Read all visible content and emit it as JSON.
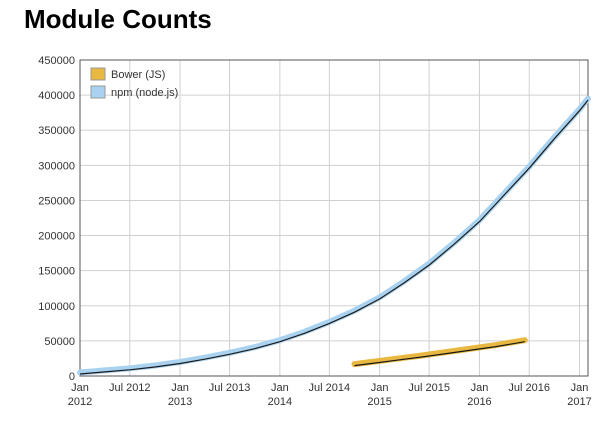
{
  "title": "Module Counts",
  "chart_data": {
    "type": "line",
    "title": "Module Counts",
    "xlabel": "",
    "ylabel": "",
    "ylim": [
      0,
      450000
    ],
    "grid": true,
    "legend_position": "top-left",
    "y_ticks": [
      0,
      50000,
      100000,
      150000,
      200000,
      250000,
      300000,
      350000,
      400000,
      450000
    ],
    "x_ticks": [
      {
        "date": "2012-01-01",
        "line1": "Jan",
        "line2": "2012"
      },
      {
        "date": "2012-07-01",
        "line1": "Jul 2012",
        "line2": ""
      },
      {
        "date": "2013-01-01",
        "line1": "Jan",
        "line2": "2013"
      },
      {
        "date": "2013-07-01",
        "line1": "Jul 2013",
        "line2": ""
      },
      {
        "date": "2014-01-01",
        "line1": "Jan",
        "line2": "2014"
      },
      {
        "date": "2014-07-01",
        "line1": "Jul 2014",
        "line2": ""
      },
      {
        "date": "2015-01-01",
        "line1": "Jan",
        "line2": "2015"
      },
      {
        "date": "2015-07-01",
        "line1": "Jul 2015",
        "line2": ""
      },
      {
        "date": "2016-01-01",
        "line1": "Jan",
        "line2": "2016"
      },
      {
        "date": "2016-07-01",
        "line1": "Jul 2016",
        "line2": ""
      },
      {
        "date": "2017-01-01",
        "line1": "Jan",
        "line2": "2017"
      }
    ],
    "xlim": [
      "2012-01-01",
      "2017-02-01"
    ],
    "series": [
      {
        "name": "Bower (JS)",
        "color": "#e8b840",
        "points": [
          [
            "2014-10-01",
            17000
          ],
          [
            "2014-12-01",
            20000
          ],
          [
            "2015-03-01",
            24500
          ],
          [
            "2015-06-01",
            29000
          ],
          [
            "2015-09-01",
            34000
          ],
          [
            "2015-12-01",
            39000
          ],
          [
            "2016-03-01",
            44000
          ],
          [
            "2016-05-01",
            48000
          ],
          [
            "2016-06-15",
            51000
          ]
        ]
      },
      {
        "name": "npm (node.js)",
        "color": "#a9d2f0",
        "points": [
          [
            "2012-01-01",
            5000
          ],
          [
            "2012-04-01",
            8000
          ],
          [
            "2012-07-01",
            11000
          ],
          [
            "2012-10-01",
            15000
          ],
          [
            "2013-01-01",
            20000
          ],
          [
            "2013-04-01",
            26000
          ],
          [
            "2013-07-01",
            33000
          ],
          [
            "2013-10-01",
            41000
          ],
          [
            "2014-01-01",
            51000
          ],
          [
            "2014-04-01",
            63000
          ],
          [
            "2014-07-01",
            77000
          ],
          [
            "2014-10-01",
            93000
          ],
          [
            "2015-01-01",
            112000
          ],
          [
            "2015-04-01",
            135000
          ],
          [
            "2015-07-01",
            160000
          ],
          [
            "2015-10-01",
            190000
          ],
          [
            "2016-01-01",
            222000
          ],
          [
            "2016-04-01",
            260000
          ],
          [
            "2016-07-01",
            298000
          ],
          [
            "2016-10-01",
            340000
          ],
          [
            "2017-01-01",
            380000
          ],
          [
            "2017-02-01",
            395000
          ]
        ]
      }
    ]
  }
}
